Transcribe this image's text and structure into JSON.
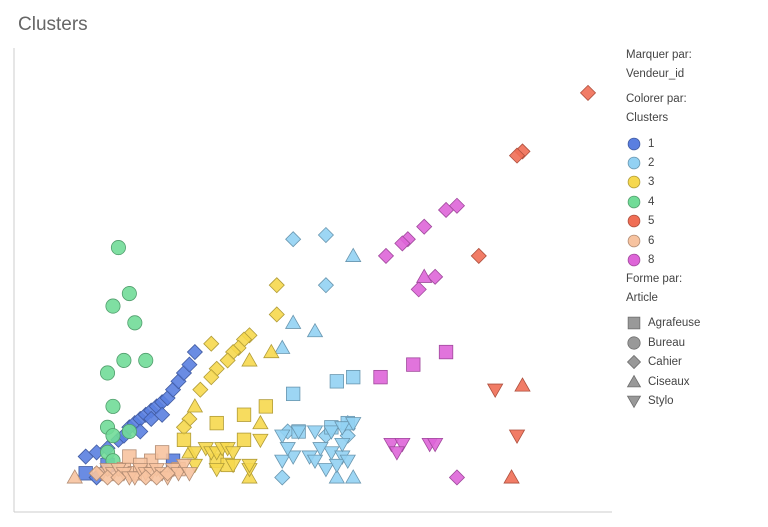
{
  "chart_data": {
    "type": "scatter",
    "title": "Clusters",
    "xlabel": "",
    "ylabel": "",
    "xlim": [
      0,
      100
    ],
    "ylim": [
      0,
      100
    ],
    "grid": false,
    "legend_position": "right",
    "legend": {
      "marker_by_label": "Marquer par:",
      "marker_by_value": "Vendeur_id",
      "color_by_label": "Colorer par:",
      "color_by_value": "Clusters",
      "clusters": [
        {
          "name": "1",
          "color": "#5a7fe0"
        },
        {
          "name": "2",
          "color": "#92d1f3"
        },
        {
          "name": "3",
          "color": "#f6d84e"
        },
        {
          "name": "4",
          "color": "#71dc98"
        },
        {
          "name": "5",
          "color": "#f06e55"
        },
        {
          "name": "6",
          "color": "#f7c3a0"
        },
        {
          "name": "8",
          "color": "#de65d8"
        }
      ],
      "shape_by_label": "Forme par:",
      "shape_by_value": "Article",
      "shapes": [
        {
          "name": "Agrafeuse",
          "shape": "square"
        },
        {
          "name": "Bureau",
          "shape": "circle"
        },
        {
          "name": "Cahier",
          "shape": "diamond"
        },
        {
          "name": "Ciseaux",
          "shape": "triangle-up"
        },
        {
          "name": "Stylo",
          "shape": "triangle-down"
        }
      ]
    },
    "series": [
      {
        "name": "1",
        "points": [
          [
            8,
            4,
            "Agrafeuse"
          ],
          [
            12,
            6,
            "Agrafeuse"
          ],
          [
            24,
            7,
            "Agrafeuse"
          ],
          [
            8,
            8,
            "Cahier"
          ],
          [
            10,
            9,
            "Cahier"
          ],
          [
            12,
            10,
            "Cahier"
          ],
          [
            14,
            12,
            "Cahier"
          ],
          [
            15,
            13,
            "Cahier"
          ],
          [
            16,
            15,
            "Cahier"
          ],
          [
            17,
            16,
            "Cahier"
          ],
          [
            18,
            17,
            "Cahier"
          ],
          [
            19,
            18,
            "Cahier"
          ],
          [
            20,
            19,
            "Cahier"
          ],
          [
            21,
            20,
            "Cahier"
          ],
          [
            22,
            21,
            "Cahier"
          ],
          [
            23,
            22,
            "Cahier"
          ],
          [
            24,
            24,
            "Cahier"
          ],
          [
            25,
            26,
            "Cahier"
          ],
          [
            26,
            28,
            "Cahier"
          ],
          [
            27,
            30,
            "Cahier"
          ],
          [
            28,
            33,
            "Cahier"
          ],
          [
            20,
            17,
            "Cahier"
          ],
          [
            22,
            18,
            "Cahier"
          ],
          [
            18,
            14,
            "Cahier"
          ],
          [
            12,
            5,
            "Cahier"
          ],
          [
            10,
            3,
            "Cahier"
          ]
        ]
      },
      {
        "name": "2",
        "points": [
          [
            46,
            60,
            "Cahier"
          ],
          [
            52,
            61,
            "Cahier"
          ],
          [
            52,
            49,
            "Cahier"
          ],
          [
            45,
            14,
            "Cahier"
          ],
          [
            52,
            13,
            "Cahier"
          ],
          [
            56,
            13,
            "Cahier"
          ],
          [
            44,
            3,
            "Cahier"
          ],
          [
            57,
            56,
            "Ciseaux"
          ],
          [
            46,
            40,
            "Ciseaux"
          ],
          [
            44,
            34,
            "Ciseaux"
          ],
          [
            50,
            38,
            "Ciseaux"
          ],
          [
            56,
            16,
            "Ciseaux"
          ],
          [
            57,
            3,
            "Ciseaux"
          ],
          [
            54,
            3,
            "Ciseaux"
          ],
          [
            46,
            23,
            "Agrafeuse"
          ],
          [
            54,
            26,
            "Agrafeuse"
          ],
          [
            57,
            27,
            "Agrafeuse"
          ],
          [
            47,
            14,
            "Agrafeuse"
          ],
          [
            53,
            15,
            "Agrafeuse"
          ],
          [
            56,
            16,
            "Agrafeuse"
          ],
          [
            44,
            13,
            "Stylo"
          ],
          [
            47,
            14,
            "Stylo"
          ],
          [
            50,
            14,
            "Stylo"
          ],
          [
            53,
            14,
            "Stylo"
          ],
          [
            55,
            15,
            "Stylo"
          ],
          [
            57,
            16,
            "Stylo"
          ],
          [
            44,
            7,
            "Stylo"
          ],
          [
            46,
            8,
            "Stylo"
          ],
          [
            49,
            8,
            "Stylo"
          ],
          [
            50,
            7,
            "Stylo"
          ],
          [
            53,
            9,
            "Stylo"
          ],
          [
            55,
            8,
            "Stylo"
          ],
          [
            52,
            5,
            "Stylo"
          ],
          [
            54,
            6,
            "Stylo"
          ],
          [
            56,
            7,
            "Stylo"
          ],
          [
            45,
            10,
            "Stylo"
          ],
          [
            51,
            10,
            "Stylo"
          ],
          [
            55,
            11,
            "Stylo"
          ]
        ]
      },
      {
        "name": "3",
        "points": [
          [
            43,
            49,
            "Cahier"
          ],
          [
            43,
            42,
            "Cahier"
          ],
          [
            38,
            37,
            "Cahier"
          ],
          [
            37,
            36,
            "Cahier"
          ],
          [
            36,
            34,
            "Cahier"
          ],
          [
            35,
            33,
            "Cahier"
          ],
          [
            34,
            31,
            "Cahier"
          ],
          [
            32,
            29,
            "Cahier"
          ],
          [
            31,
            27,
            "Cahier"
          ],
          [
            31,
            35,
            "Cahier"
          ],
          [
            29,
            24,
            "Cahier"
          ],
          [
            27,
            17,
            "Cahier"
          ],
          [
            26,
            15,
            "Cahier"
          ],
          [
            42,
            33,
            "Ciseaux"
          ],
          [
            38,
            31,
            "Ciseaux"
          ],
          [
            28,
            20,
            "Ciseaux"
          ],
          [
            27,
            9,
            "Ciseaux"
          ],
          [
            38,
            3,
            "Ciseaux"
          ],
          [
            40,
            16,
            "Ciseaux"
          ],
          [
            32,
            16,
            "Agrafeuse"
          ],
          [
            37,
            18,
            "Agrafeuse"
          ],
          [
            41,
            20,
            "Agrafeuse"
          ],
          [
            37,
            12,
            "Agrafeuse"
          ],
          [
            32,
            7,
            "Agrafeuse"
          ],
          [
            34,
            6,
            "Agrafeuse"
          ],
          [
            26,
            12,
            "Agrafeuse"
          ],
          [
            28,
            9,
            "Stylo"
          ],
          [
            30,
            10,
            "Stylo"
          ],
          [
            31,
            9,
            "Stylo"
          ],
          [
            32,
            9,
            "Stylo"
          ],
          [
            33,
            10,
            "Stylo"
          ],
          [
            34,
            10,
            "Stylo"
          ],
          [
            35,
            9,
            "Stylo"
          ],
          [
            28,
            6,
            "Stylo"
          ],
          [
            32,
            5,
            "Stylo"
          ],
          [
            35,
            6,
            "Stylo"
          ],
          [
            38,
            5,
            "Stylo"
          ],
          [
            40,
            12,
            "Stylo"
          ],
          [
            38,
            6,
            "Stylo"
          ]
        ]
      },
      {
        "name": "4",
        "points": [
          [
            14,
            58,
            "Bureau"
          ],
          [
            17,
            40,
            "Bureau"
          ],
          [
            16,
            47,
            "Bureau"
          ],
          [
            13,
            44,
            "Bureau"
          ],
          [
            15,
            31,
            "Bureau"
          ],
          [
            19,
            31,
            "Bureau"
          ],
          [
            12,
            28,
            "Bureau"
          ],
          [
            13,
            20,
            "Bureau"
          ],
          [
            12,
            15,
            "Bureau"
          ],
          [
            13,
            13,
            "Bureau"
          ],
          [
            16,
            14,
            "Bureau"
          ],
          [
            12,
            9,
            "Bureau"
          ],
          [
            13,
            7,
            "Bureau"
          ]
        ]
      },
      {
        "name": "5",
        "points": [
          [
            100,
            95,
            "Cahier"
          ],
          [
            88,
            81,
            "Cahier"
          ],
          [
            87,
            80,
            "Cahier"
          ],
          [
            80,
            56,
            "Cahier"
          ],
          [
            88,
            25,
            "Ciseaux"
          ],
          [
            86,
            3,
            "Ciseaux"
          ],
          [
            83,
            24,
            "Stylo"
          ],
          [
            87,
            13,
            "Stylo"
          ]
        ]
      },
      {
        "name": "6",
        "points": [
          [
            6,
            3,
            "Ciseaux"
          ],
          [
            15,
            5,
            "Agrafeuse"
          ],
          [
            17,
            4,
            "Agrafeuse"
          ],
          [
            20,
            7,
            "Agrafeuse"
          ],
          [
            22,
            9,
            "Agrafeuse"
          ],
          [
            25,
            5,
            "Agrafeuse"
          ],
          [
            16,
            8,
            "Agrafeuse"
          ],
          [
            18,
            6,
            "Agrafeuse"
          ],
          [
            11,
            4,
            "Stylo"
          ],
          [
            12,
            5,
            "Stylo"
          ],
          [
            13,
            4,
            "Stylo"
          ],
          [
            14,
            5,
            "Stylo"
          ],
          [
            15,
            4,
            "Stylo"
          ],
          [
            16,
            3,
            "Stylo"
          ],
          [
            17,
            3,
            "Stylo"
          ],
          [
            18,
            5,
            "Stylo"
          ],
          [
            19,
            4,
            "Stylo"
          ],
          [
            20,
            4,
            "Stylo"
          ],
          [
            21,
            5,
            "Stylo"
          ],
          [
            22,
            4,
            "Stylo"
          ],
          [
            23,
            3,
            "Stylo"
          ],
          [
            24,
            5,
            "Stylo"
          ],
          [
            25,
            4,
            "Stylo"
          ],
          [
            26,
            6,
            "Stylo"
          ],
          [
            27,
            4,
            "Stylo"
          ],
          [
            10,
            4,
            "Cahier"
          ],
          [
            12,
            3,
            "Cahier"
          ],
          [
            14,
            3,
            "Cahier"
          ],
          [
            19,
            3,
            "Cahier"
          ],
          [
            21,
            3,
            "Cahier"
          ],
          [
            23,
            4,
            "Cahier"
          ]
        ]
      },
      {
        "name": "8",
        "points": [
          [
            76,
            68,
            "Cahier"
          ],
          [
            74,
            67,
            "Cahier"
          ],
          [
            70,
            63,
            "Cahier"
          ],
          [
            67,
            60,
            "Cahier"
          ],
          [
            66,
            59,
            "Cahier"
          ],
          [
            63,
            56,
            "Cahier"
          ],
          [
            72,
            51,
            "Cahier"
          ],
          [
            69,
            48,
            "Cahier"
          ],
          [
            76,
            3,
            "Cahier"
          ],
          [
            70,
            51,
            "Ciseaux"
          ],
          [
            74,
            33,
            "Agrafeuse"
          ],
          [
            68,
            30,
            "Agrafeuse"
          ],
          [
            62,
            27,
            "Agrafeuse"
          ],
          [
            64,
            11,
            "Stylo"
          ],
          [
            66,
            11,
            "Stylo"
          ],
          [
            71,
            11,
            "Stylo"
          ],
          [
            72,
            11,
            "Stylo"
          ],
          [
            65,
            9,
            "Stylo"
          ]
        ]
      }
    ]
  }
}
